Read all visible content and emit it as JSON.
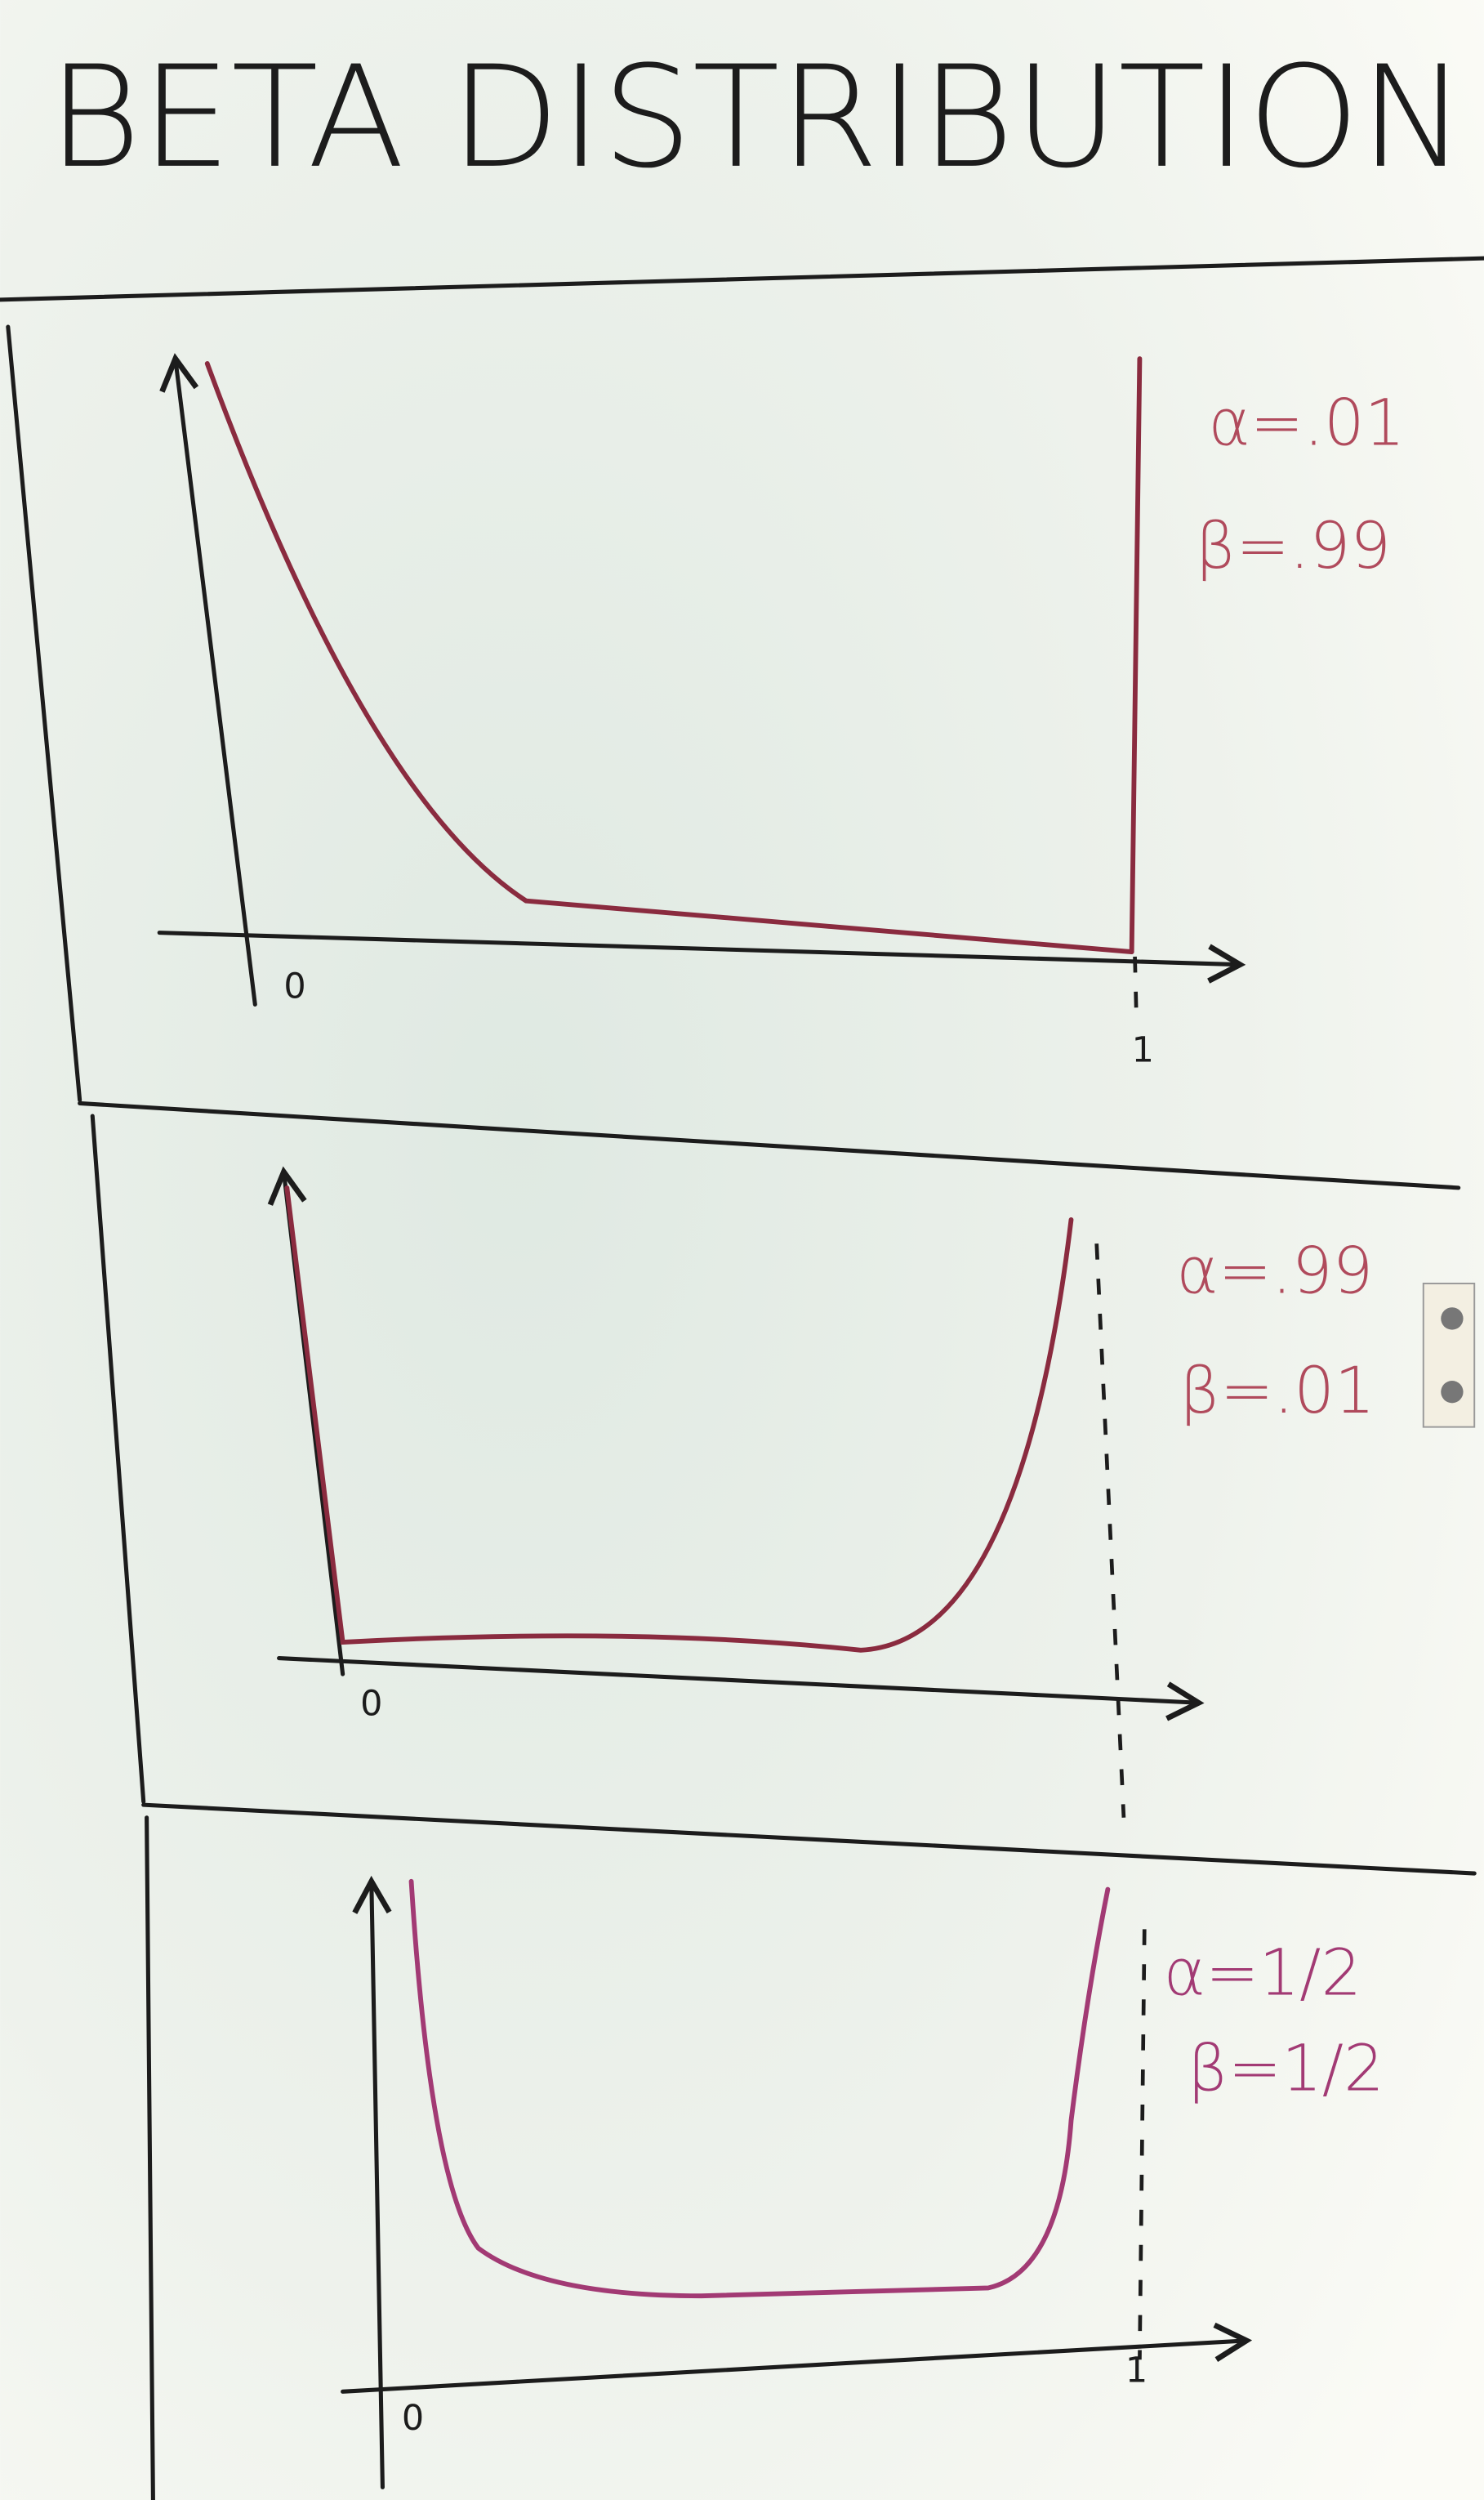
{
  "title": "BETA DISTRIBUTION",
  "panels": [
    {
      "alpha": "α=.01",
      "beta": "β=.99",
      "origin": "0",
      "one": "1"
    },
    {
      "alpha": "α=.99",
      "beta": "β=.01",
      "origin": "0"
    },
    {
      "alpha": "α=1/2",
      "beta": "β=1/2",
      "origin": "0",
      "one": "1"
    }
  ]
}
